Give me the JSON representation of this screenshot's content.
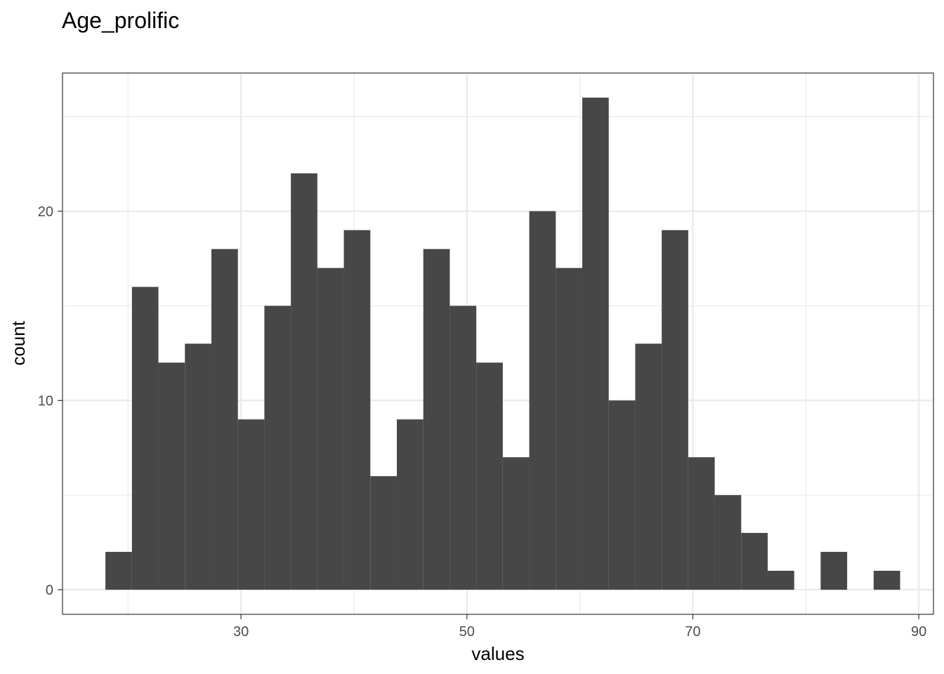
{
  "chart_data": {
    "type": "bar",
    "title": "Age_prolific",
    "xlabel": "values",
    "ylabel": "count",
    "bins": {
      "starts": [
        18.0,
        20.345,
        22.69,
        25.035,
        27.38,
        29.725,
        32.07,
        34.415,
        36.76,
        39.105,
        41.45,
        43.795,
        46.14,
        48.485,
        50.83,
        53.175,
        55.52,
        57.865,
        60.21,
        62.555,
        64.9,
        67.245,
        69.59,
        71.935,
        74.28,
        76.625,
        78.97,
        81.315,
        83.66,
        86.005
      ],
      "width": 2.345
    },
    "values": [
      2,
      16,
      12,
      13,
      18,
      9,
      15,
      22,
      17,
      19,
      6,
      9,
      18,
      15,
      12,
      7,
      20,
      17,
      26,
      10,
      13,
      19,
      7,
      5,
      3,
      1,
      0,
      2,
      0,
      1
    ],
    "xlim": [
      14.2,
      91.3
    ],
    "ylim": [
      -1.3,
      27.3
    ],
    "x_ticks": [
      30,
      50,
      70,
      90
    ],
    "x_minor_ticks": [
      20,
      40,
      60,
      80
    ],
    "y_ticks": [
      0,
      10,
      20
    ],
    "y_minor_ticks": [
      5,
      15,
      25
    ],
    "bar_color": "#474747",
    "grid": true,
    "grid_color": "#ebebeb",
    "panel_border_color": "#333333"
  }
}
